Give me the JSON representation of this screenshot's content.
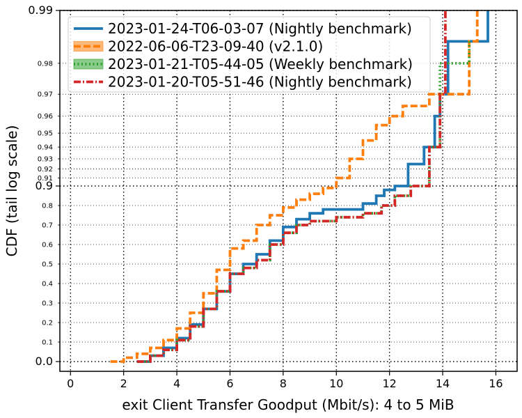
{
  "chart_data": {
    "type": "line",
    "title": "",
    "xlabel": "exit Client Transfer Goodput (Mbit/s): 4 to 5 MiB",
    "ylabel": "CDF (tail log scale)",
    "xlim": [
      -0.4,
      16.8
    ],
    "ylim": [
      0.0,
      0.99
    ],
    "y_scale": "tail-log (linear below 0.9, log-tail above 0.9)",
    "grid": true,
    "legend_position": "top-left",
    "x_ticks": [
      "0",
      "2",
      "4",
      "6",
      "8",
      "10",
      "12",
      "14",
      "16"
    ],
    "y_ticks_major": [
      "0.0",
      "0.9",
      "0.99"
    ],
    "y_ticks_minor": [
      "0.1",
      "0.2",
      "0.3",
      "0.4",
      "0.5",
      "0.6",
      "0.7",
      "0.8",
      "0.91",
      "0.92",
      "0.93",
      "0.94",
      "0.95",
      "0.96",
      "0.97",
      "0.98"
    ],
    "series": [
      {
        "name": "2023-01-24-T06-03-07 (Nightly benchmark)",
        "color": "#1f77b4",
        "style": "solid",
        "x": [
          2.5,
          3.0,
          3.5,
          4.0,
          4.5,
          5.0,
          5.5,
          6.0,
          6.5,
          7.0,
          7.5,
          8.0,
          8.5,
          9.0,
          9.5,
          10.5,
          11.0,
          11.5,
          11.8,
          12.2,
          12.7,
          13.3,
          13.7,
          13.9,
          14.2,
          15.7
        ],
        "y": [
          0.0,
          0.03,
          0.07,
          0.12,
          0.19,
          0.27,
          0.36,
          0.45,
          0.5,
          0.55,
          0.62,
          0.69,
          0.73,
          0.76,
          0.78,
          0.78,
          0.81,
          0.85,
          0.88,
          0.9,
          0.925,
          0.94,
          0.96,
          0.97,
          0.985,
          0.99
        ]
      },
      {
        "name": "2022-06-06-T23-09-40 (v2.1.0)",
        "color": "#ff7f0e",
        "style": "dashed",
        "x": [
          1.5,
          2.0,
          2.5,
          3.0,
          3.5,
          4.0,
          4.5,
          5.0,
          5.5,
          6.0,
          6.5,
          7.0,
          7.5,
          8.0,
          8.5,
          9.0,
          9.5,
          10.0,
          10.5,
          11.0,
          11.5,
          12.0,
          12.5,
          13.5,
          15.0,
          15.3
        ],
        "y": [
          0.0,
          0.02,
          0.04,
          0.07,
          0.11,
          0.17,
          0.25,
          0.35,
          0.47,
          0.58,
          0.62,
          0.7,
          0.75,
          0.79,
          0.83,
          0.86,
          0.89,
          0.91,
          0.93,
          0.945,
          0.955,
          0.96,
          0.965,
          0.97,
          0.985,
          0.99
        ]
      },
      {
        "name": "2023-01-21-T05-44-05 (Weekly benchmark)",
        "color": "#2ca02c",
        "style": "dotted",
        "x": [
          2.5,
          3.0,
          3.5,
          4.0,
          4.5,
          5.0,
          5.5,
          6.0,
          6.5,
          7.0,
          7.5,
          8.0,
          8.5,
          9.0,
          10.0,
          11.0,
          11.7,
          12.2,
          12.8,
          13.5,
          13.9,
          15.0
        ],
        "y": [
          0.0,
          0.03,
          0.06,
          0.11,
          0.18,
          0.27,
          0.36,
          0.45,
          0.48,
          0.52,
          0.6,
          0.66,
          0.7,
          0.72,
          0.74,
          0.76,
          0.8,
          0.85,
          0.9,
          0.94,
          0.98,
          0.985
        ]
      },
      {
        "name": "2023-01-20-T05-51-46 (Nightly benchmark)",
        "color": "#d62728",
        "style": "dashdot",
        "x": [
          2.5,
          3.0,
          3.5,
          4.0,
          4.5,
          5.0,
          5.5,
          6.0,
          6.5,
          7.0,
          7.5,
          8.0,
          8.5,
          9.0,
          10.0,
          11.0,
          11.7,
          12.2,
          12.8,
          13.5,
          13.9,
          14.1
        ],
        "y": [
          0.0,
          0.03,
          0.06,
          0.11,
          0.18,
          0.27,
          0.36,
          0.45,
          0.48,
          0.52,
          0.6,
          0.66,
          0.7,
          0.72,
          0.74,
          0.76,
          0.8,
          0.85,
          0.9,
          0.94,
          0.97,
          0.99
        ]
      }
    ]
  }
}
